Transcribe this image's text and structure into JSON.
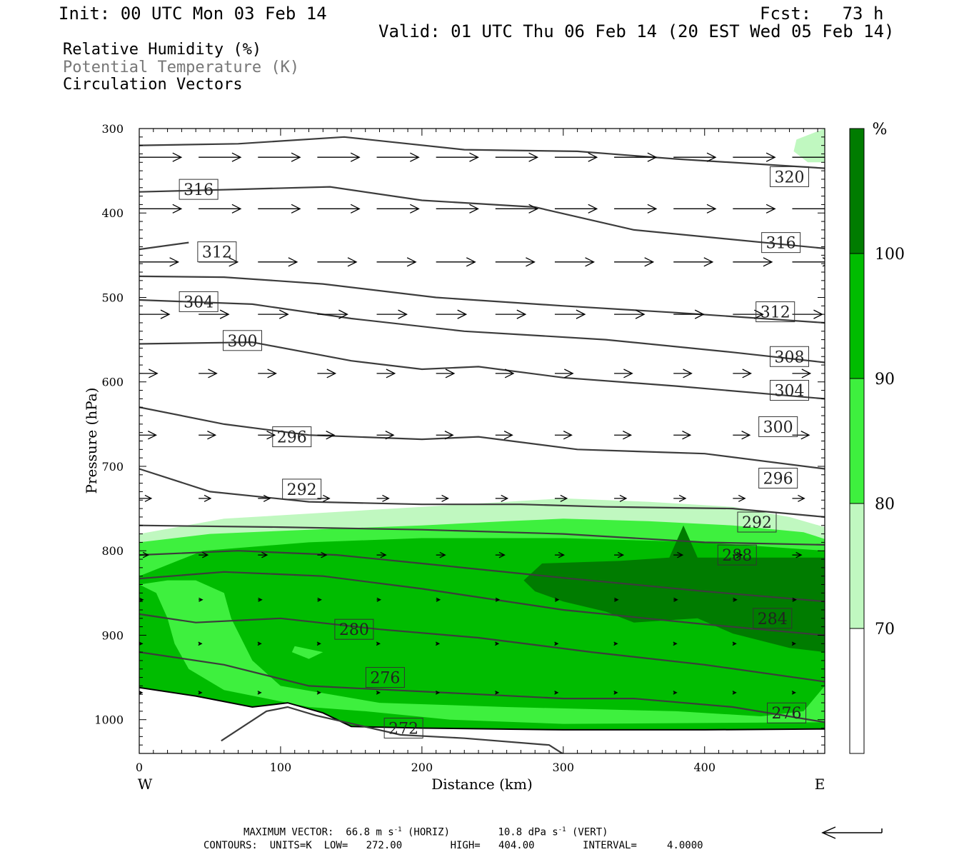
{
  "header": {
    "init": "Init: 00 UTC Mon 03 Feb 14",
    "fcst": "Fcst:   73 h",
    "valid": "Valid: 01 UTC Thu 06 Feb 14 (20 EST Wed 05 Feb 14)"
  },
  "fields": {
    "rh": "Relative Humidity (%)",
    "theta": "Potential Temperature (K)",
    "vectors": "Circulation Vectors"
  },
  "footer": {
    "max_vector_prefix": "MAXIMUM VECTOR:  66.8 m s",
    "max_vector_horiz": " (HORIZ)",
    "max_vector_vert_prefix": "10.8 dPa s",
    "max_vector_vert": " (VERT)",
    "exp": "-1",
    "contours": "CONTOURS:  UNITS=K  LOW=   272.00        HIGH=   404.00        INTERVAL=     4.0000"
  },
  "colors": {
    "rh_70_80": "#c0f8c0",
    "rh_80_90": "#3ef03e",
    "rh_90_100": "#00bc00",
    "rh_100": "#007c00",
    "contour": "#3c3c3c",
    "vector": "#000000"
  },
  "chart_data": {
    "type": "contour",
    "xlabel": "Distance (km)",
    "ylabel": "Pressure (hPa)",
    "xlim": [
      0,
      485
    ],
    "ylim": [
      1040,
      300
    ],
    "x_ticks": [
      "0",
      "100",
      "200",
      "300",
      "400"
    ],
    "y_ticks": [
      "300",
      "400",
      "500",
      "600",
      "700",
      "800",
      "900",
      "1000"
    ],
    "x_tick_values": [
      0,
      100,
      200,
      300,
      400
    ],
    "y_tick_values": [
      300,
      400,
      500,
      600,
      700,
      800,
      900,
      1000
    ],
    "west_label": "W",
    "east_label": "E",
    "colorbar": {
      "unit": "%",
      "labels": [
        "100",
        "90",
        "80",
        "70"
      ],
      "levels": [
        100,
        90,
        80,
        70
      ]
    },
    "theta_contours": [
      {
        "label": "320",
        "points": [
          [
            0,
            320
          ],
          [
            70,
            318
          ],
          [
            145,
            310
          ],
          [
            230,
            325
          ],
          [
            310,
            327
          ],
          [
            380,
            336
          ],
          [
            485,
            347
          ]
        ],
        "label_at": [
          460,
          357
        ]
      },
      {
        "label": "316",
        "points": [
          [
            0,
            375
          ],
          [
            70,
            372
          ],
          [
            135,
            369
          ],
          [
            200,
            385
          ],
          [
            280,
            393
          ],
          [
            350,
            420
          ],
          [
            485,
            442
          ]
        ],
        "label_at": [
          454,
          435
        ]
      },
      {
        "label": "316",
        "points": [
          [
            30,
            378
          ]
        ],
        "label_at": [
          42,
          372
        ],
        "only_label": true
      },
      {
        "label": "312",
        "points": [
          [
            0,
            475
          ],
          [
            60,
            476
          ],
          [
            130,
            484
          ],
          [
            210,
            500
          ],
          [
            300,
            510
          ],
          [
            380,
            518
          ],
          [
            485,
            530
          ]
        ],
        "label_at": [
          450,
          517
        ]
      },
      {
        "label": "312",
        "points": [
          [
            0,
            443
          ],
          [
            35,
            435
          ]
        ],
        "label_at": [
          55,
          446
        ]
      },
      {
        "label": "308",
        "points": [
          [
            0,
            503
          ],
          [
            80,
            508
          ],
          [
            150,
            525
          ],
          [
            230,
            540
          ],
          [
            330,
            550
          ],
          [
            420,
            565
          ],
          [
            485,
            577
          ]
        ],
        "label_at": [
          460,
          570
        ]
      },
      {
        "label": "304",
        "points": [
          [
            0,
            555
          ],
          [
            80,
            553
          ],
          [
            150,
            575
          ],
          [
            200,
            585
          ],
          [
            240,
            582
          ],
          [
            300,
            595
          ],
          [
            380,
            605
          ],
          [
            485,
            620
          ]
        ],
        "label_at": [
          460,
          610
        ]
      },
      {
        "label": "304",
        "points": [
          [
            0,
            505
          ],
          [
            25,
            500
          ]
        ],
        "label_at": [
          42,
          505
        ],
        "only_label": true
      },
      {
        "label": "300",
        "points": [
          [
            0,
            630
          ],
          [
            60,
            650
          ],
          [
            120,
            663
          ],
          [
            200,
            668
          ],
          [
            240,
            665
          ],
          [
            310,
            680
          ],
          [
            400,
            685
          ],
          [
            485,
            703
          ]
        ],
        "label_at": [
          452,
          653
        ]
      },
      {
        "label": "300",
        "points": [
          [
            60,
            555
          ]
        ],
        "label_at": [
          73,
          551
        ],
        "only_label": true
      },
      {
        "label": "296",
        "points": [
          [
            0,
            703
          ],
          [
            50,
            730
          ],
          [
            120,
            742
          ],
          [
            200,
            745
          ],
          [
            270,
            745
          ],
          [
            330,
            748
          ],
          [
            420,
            750
          ],
          [
            485,
            760
          ]
        ],
        "label_at": [
          452,
          714
        ]
      },
      {
        "label": "296",
        "points": [
          [
            95,
            665
          ]
        ],
        "label_at": [
          108,
          665
        ],
        "only_label": true
      },
      {
        "label": "292",
        "points": [
          [
            0,
            770
          ],
          [
            100,
            772
          ],
          [
            200,
            775
          ],
          [
            300,
            780
          ],
          [
            400,
            790
          ],
          [
            485,
            793
          ]
        ],
        "label_at": [
          437,
          766
        ]
      },
      {
        "label": "292",
        "points": [
          [
            110,
            730
          ]
        ],
        "label_at": [
          115,
          727
        ],
        "only_label": true
      },
      {
        "label": "288",
        "points": [
          [
            0,
            805
          ],
          [
            70,
            800
          ],
          [
            140,
            805
          ],
          [
            200,
            815
          ],
          [
            300,
            832
          ],
          [
            400,
            848
          ],
          [
            485,
            860
          ]
        ],
        "label_at": [
          423,
          805
        ]
      },
      {
        "label": "284",
        "points": [
          [
            0,
            833
          ],
          [
            60,
            825
          ],
          [
            130,
            830
          ],
          [
            200,
            845
          ],
          [
            300,
            870
          ],
          [
            400,
            887
          ],
          [
            485,
            900
          ]
        ],
        "label_at": [
          448,
          880
        ]
      },
      {
        "label": "280",
        "points": [
          [
            0,
            875
          ],
          [
            40,
            885
          ],
          [
            100,
            880
          ],
          [
            170,
            893
          ],
          [
            240,
            903
          ],
          [
            320,
            920
          ],
          [
            400,
            935
          ],
          [
            485,
            955
          ]
        ],
        "label_at": [
          152,
          893
        ]
      },
      {
        "label": "276",
        "points": [
          [
            0,
            920
          ],
          [
            60,
            935
          ],
          [
            120,
            960
          ],
          [
            180,
            965
          ],
          [
            240,
            970
          ],
          [
            300,
            975
          ],
          [
            350,
            975
          ],
          [
            420,
            985
          ],
          [
            485,
            1003
          ]
        ],
        "label_at": [
          174,
          950
        ]
      },
      {
        "label": "276",
        "points": [
          [
            421,
            963
          ],
          [
            485,
            963
          ]
        ],
        "label_at": [
          458,
          992
        ],
        "only_label": true
      },
      {
        "label": "272",
        "points": [
          [
            58,
            1025
          ],
          [
            90,
            990
          ],
          [
            105,
            985
          ],
          [
            125,
            995
          ],
          [
            185,
            1018
          ],
          [
            230,
            1022
          ],
          [
            290,
            1030
          ],
          [
            305,
            1046
          ],
          [
            305,
            1050
          ]
        ],
        "label_at": [
          187,
          1010
        ]
      }
    ],
    "vector_rows": [
      {
        "p": 334,
        "dx": 0.7,
        "dy": 0.0
      },
      {
        "p": 395,
        "dx": 0.7,
        "dy": 0.0
      },
      {
        "p": 458,
        "dx": 0.65,
        "dy": 0.0
      },
      {
        "p": 520,
        "dx": 0.5,
        "dy": 0.0
      },
      {
        "p": 590,
        "dx": 0.3,
        "dy": 0.0
      },
      {
        "p": 663,
        "dx": 0.28,
        "dy": 0.0
      },
      {
        "p": 738,
        "dx": 0.2,
        "dy": 0.0
      },
      {
        "p": 805,
        "dx": 0.15,
        "dy": 0.0
      },
      {
        "p": 858,
        "dx": 0.06,
        "dy": 0.0
      },
      {
        "p": 910,
        "dx": 0.03,
        "dy": 0.0
      },
      {
        "p": 968,
        "dx": 0.03,
        "dy": 0.0
      }
    ]
  }
}
